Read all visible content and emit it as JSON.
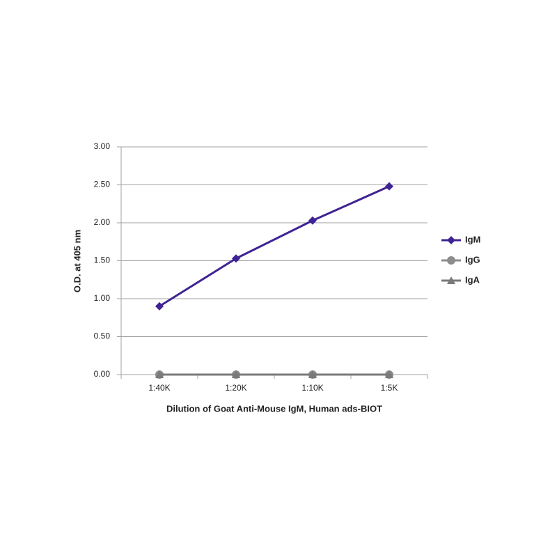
{
  "chart_data": {
    "type": "line",
    "x_label": "Dilution of Goat Anti-Mouse IgM, Human ads-BIOT",
    "y_label": "O.D. at 405 nm",
    "categories": [
      "1:40K",
      "1:20K",
      "1:10K",
      "1:5K"
    ],
    "series": [
      {
        "name": "IgM",
        "color": "#3f2393",
        "marker": "diamond",
        "values": [
          0.9,
          1.53,
          2.03,
          2.48
        ]
      },
      {
        "name": "IgG",
        "color": "#8c8c8c",
        "marker": "circle",
        "values": [
          0,
          0,
          0,
          0
        ]
      },
      {
        "name": "IgA",
        "color": "#7a7a7a",
        "marker": "triangle",
        "values": [
          0,
          0,
          0,
          0
        ]
      }
    ],
    "ylim": [
      0,
      3
    ],
    "yticks": [
      {
        "value": 0,
        "label": "0.00"
      },
      {
        "value": 0.5,
        "label": "0.50"
      },
      {
        "value": 1,
        "label": "1.00"
      },
      {
        "value": 1.5,
        "label": "1.50"
      },
      {
        "value": 2,
        "label": "2.00"
      },
      {
        "value": 2.5,
        "label": "2.50"
      },
      {
        "value": 3,
        "label": "3.00"
      }
    ],
    "grid": true,
    "legend": "right"
  }
}
